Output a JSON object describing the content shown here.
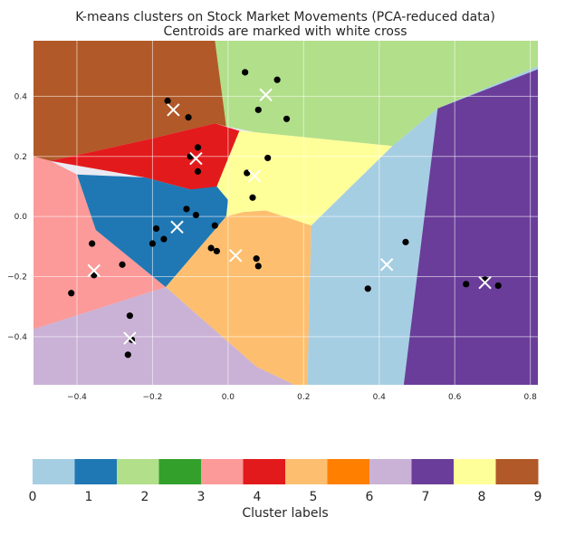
{
  "chart_data": {
    "type": "scatter",
    "title": "K-means clusters on Stock Market Movements (PCA-reduced data)",
    "subtitle": "Centroids are marked with white cross",
    "xlim": [
      -0.515,
      0.82
    ],
    "ylim": [
      -0.56,
      0.585
    ],
    "x_ticks": [
      -0.4,
      -0.2,
      0.0,
      0.2,
      0.4,
      0.6,
      0.8
    ],
    "x_tick_labels": [
      "−0.4",
      "−0.2",
      "0.0",
      "0.2",
      "0.4",
      "0.6",
      "0.8"
    ],
    "y_ticks": [
      -0.4,
      -0.2,
      0.0,
      0.2,
      0.4
    ],
    "y_tick_labels": [
      "−0.4",
      "−0.2",
      "0.0",
      "0.2",
      "0.4"
    ],
    "grid": true,
    "points": [
      [
        0.045,
        0.48
      ],
      [
        0.13,
        0.455
      ],
      [
        0.08,
        0.355
      ],
      [
        0.155,
        0.325
      ],
      [
        -0.16,
        0.385
      ],
      [
        -0.105,
        0.33
      ],
      [
        -0.08,
        0.23
      ],
      [
        -0.1,
        0.2
      ],
      [
        -0.08,
        0.15
      ],
      [
        0.105,
        0.195
      ],
      [
        0.05,
        0.145
      ],
      [
        0.065,
        0.063
      ],
      [
        -0.11,
        0.025
      ],
      [
        -0.085,
        0.005
      ],
      [
        -0.19,
        -0.04
      ],
      [
        -0.2,
        -0.09
      ],
      [
        -0.17,
        -0.075
      ],
      [
        -0.035,
        -0.03
      ],
      [
        -0.045,
        -0.105
      ],
      [
        -0.03,
        -0.115
      ],
      [
        0.075,
        -0.14
      ],
      [
        0.08,
        -0.165
      ],
      [
        0.47,
        -0.085
      ],
      [
        0.37,
        -0.24
      ],
      [
        0.63,
        -0.225
      ],
      [
        0.68,
        -0.21
      ],
      [
        0.715,
        -0.23
      ],
      [
        -0.36,
        -0.09
      ],
      [
        -0.355,
        -0.195
      ],
      [
        -0.28,
        -0.16
      ],
      [
        -0.415,
        -0.255
      ],
      [
        -0.26,
        -0.33
      ],
      [
        -0.255,
        -0.41
      ],
      [
        -0.265,
        -0.46
      ]
    ],
    "centroids": [
      [
        0.1,
        0.405
      ],
      [
        -0.145,
        0.355
      ],
      [
        -0.085,
        0.193
      ],
      [
        0.07,
        0.135
      ],
      [
        -0.135,
        -0.035
      ],
      [
        0.02,
        -0.13
      ],
      [
        -0.355,
        -0.18
      ],
      [
        -0.26,
        -0.405
      ],
      [
        0.42,
        -0.16
      ],
      [
        0.68,
        -0.22
      ]
    ],
    "regions": [
      {
        "color": "#b15928",
        "points": [
          [
            -0.515,
            0.585
          ],
          [
            -0.185,
            0.585
          ],
          [
            0.0,
            0.585
          ],
          [
            -0.17,
            0.585
          ],
          [
            0.0,
            0.585
          ],
          [
            -0.017,
            0.495
          ],
          [
            -0.005,
            0.3
          ],
          [
            -0.035,
            0.31
          ],
          [
            -0.2,
            0.26
          ],
          [
            -0.47,
            0.185
          ],
          [
            -0.515,
            0.2
          ]
        ]
      },
      {
        "color": "#b2df8a",
        "points": [
          [
            -0.035,
            0.585
          ],
          [
            0.82,
            0.585
          ],
          [
            0.82,
            0.5
          ],
          [
            0.555,
            0.36
          ],
          [
            0.435,
            0.235
          ],
          [
            0.075,
            0.28
          ],
          [
            -0.005,
            0.3
          ]
        ]
      },
      {
        "color": "#e31a1c",
        "points": [
          [
            -0.2,
            0.26
          ],
          [
            -0.035,
            0.31
          ],
          [
            0.03,
            0.285
          ],
          [
            -0.03,
            0.1
          ],
          [
            -0.0,
            0.055
          ],
          [
            -0.1,
            0.09
          ],
          [
            -0.22,
            0.13
          ],
          [
            -0.47,
            0.185
          ]
        ]
      },
      {
        "color": "#ffff99",
        "points": [
          [
            0.03,
            0.285
          ],
          [
            0.075,
            0.28
          ],
          [
            0.435,
            0.235
          ],
          [
            0.22,
            -0.03
          ],
          [
            0.1,
            0.02
          ],
          [
            0.04,
            0.015
          ],
          [
            -0.005,
            0.0
          ],
          [
            -0.03,
            0.1
          ]
        ]
      },
      {
        "color": "#1f78b4",
        "points": [
          [
            -0.22,
            0.13
          ],
          [
            -0.1,
            0.09
          ],
          [
            -0.03,
            0.1
          ],
          [
            -0.0,
            0.055
          ],
          [
            -0.005,
            0.0
          ],
          [
            -0.165,
            -0.235
          ],
          [
            -0.35,
            -0.045
          ],
          [
            -0.4,
            0.14
          ]
        ]
      },
      {
        "color": "#fb9a99",
        "points": [
          [
            -0.515,
            0.2
          ],
          [
            -0.47,
            0.185
          ],
          [
            -0.4,
            0.14
          ],
          [
            -0.35,
            -0.045
          ],
          [
            -0.165,
            -0.235
          ],
          [
            -0.515,
            -0.375
          ]
        ]
      },
      {
        "color": "#fdbf6f",
        "points": [
          [
            -0.005,
            0.0
          ],
          [
            0.04,
            0.015
          ],
          [
            0.1,
            0.02
          ],
          [
            0.22,
            -0.03
          ],
          [
            0.21,
            -0.56
          ],
          [
            0.175,
            -0.56
          ],
          [
            0.075,
            -0.5
          ],
          [
            -0.165,
            -0.235
          ]
        ]
      },
      {
        "color": "#cab2d6",
        "points": [
          [
            -0.515,
            -0.375
          ],
          [
            -0.165,
            -0.235
          ],
          [
            0.075,
            -0.5
          ],
          [
            0.175,
            -0.56
          ],
          [
            -0.515,
            -0.56
          ]
        ]
      },
      {
        "color": "#a6cee3",
        "points": [
          [
            0.435,
            0.235
          ],
          [
            0.555,
            0.36
          ],
          [
            0.82,
            0.5
          ],
          [
            0.82,
            -0.56
          ],
          [
            0.21,
            -0.56
          ],
          [
            0.22,
            -0.03
          ]
        ]
      },
      {
        "color": "#6a3d9a",
        "points": [
          [
            0.555,
            0.36
          ],
          [
            0.82,
            0.49
          ],
          [
            0.82,
            -0.56
          ],
          [
            0.465,
            -0.56
          ]
        ]
      }
    ],
    "colorbar": {
      "label": "Cluster labels",
      "ticks": [
        "0",
        "1",
        "2",
        "3",
        "4",
        "5",
        "6",
        "7",
        "8",
        "9"
      ],
      "colors": [
        "#a6cee3",
        "#1f78b4",
        "#b2df8a",
        "#33a02c",
        "#fb9a99",
        "#e31a1c",
        "#fdbf6f",
        "#ff7f00",
        "#cab2d6",
        "#6a3d9a",
        "#ffff99",
        "#b15928"
      ]
    }
  }
}
